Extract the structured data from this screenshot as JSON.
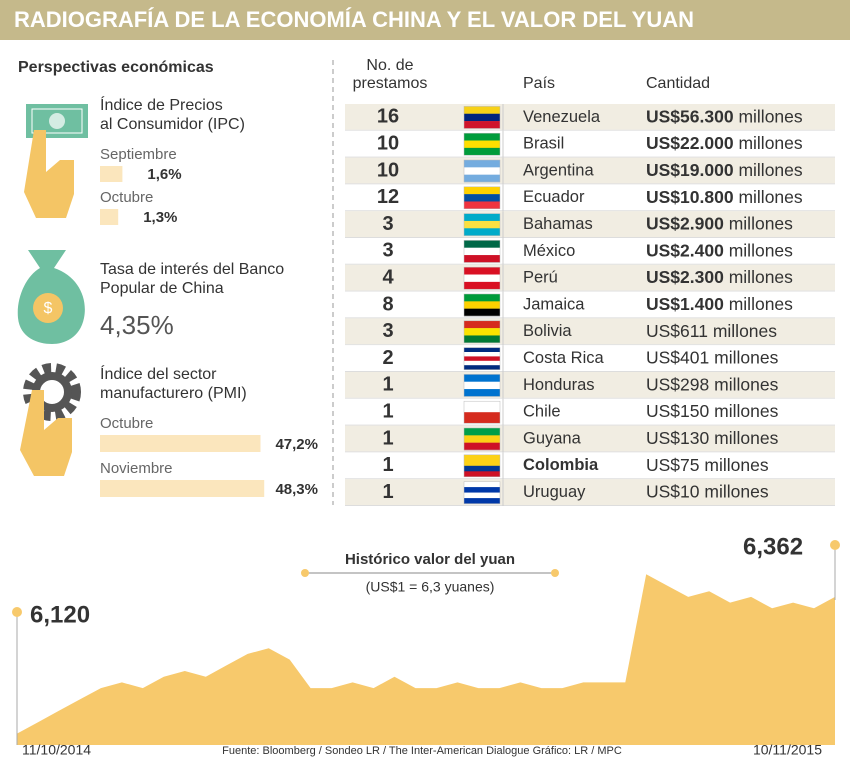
{
  "title": "RADIOGRAFÍA DE LA ECONOMÍA CHINA Y EL VALOR DEL YUAN",
  "perspectives": {
    "heading": "Perspectivas económicas",
    "ipc": {
      "title": [
        "Índice de Precios",
        "al Consumidor (IPC)"
      ],
      "items": [
        {
          "month": "Septiembre",
          "value": 1.6,
          "label": "1,6%"
        },
        {
          "month": "Octubre",
          "value": 1.3,
          "label": "1,3%"
        }
      ]
    },
    "rate": {
      "title": [
        "Tasa de interés del Banco",
        "Popular de China"
      ],
      "value": "4,35%"
    },
    "pmi": {
      "title": [
        "Índice del sector",
        "manufacturero (PMI)"
      ],
      "items": [
        {
          "month": "Octubre",
          "value": 47.2,
          "label": "47,2%"
        },
        {
          "month": "Noviembre",
          "value": 48.3,
          "label": "48,3%"
        }
      ]
    }
  },
  "table": {
    "headers": {
      "loans": [
        "No. de",
        "prestamos"
      ],
      "country": "País",
      "amount": "Cantidad"
    },
    "rows": [
      {
        "loans": "16",
        "country": "Venezuela",
        "amount": "US$56.300",
        "unit": "millones"
      },
      {
        "loans": "10",
        "country": "Brasil",
        "amount": "US$22.000",
        "unit": "millones"
      },
      {
        "loans": "10",
        "country": "Argentina",
        "amount": "US$19.000",
        "unit": "millones"
      },
      {
        "loans": "12",
        "country": "Ecuador",
        "amount": "US$10.800",
        "unit": "millones"
      },
      {
        "loans": "3",
        "country": "Bahamas",
        "amount": "US$2.900",
        "unit": "millones"
      },
      {
        "loans": "3",
        "country": "México",
        "amount": "US$2.400",
        "unit": "millones"
      },
      {
        "loans": "4",
        "country": "Perú",
        "amount": "US$2.300",
        "unit": "millones"
      },
      {
        "loans": "8",
        "country": "Jamaica",
        "amount": "US$1.400",
        "unit": "millones"
      },
      {
        "loans": "3",
        "country": "Bolivia",
        "amount": "US$611",
        "unit": "millones"
      },
      {
        "loans": "2",
        "country": "Costa Rica",
        "amount": "US$401",
        "unit": "millones"
      },
      {
        "loans": "1",
        "country": "Honduras",
        "amount": "US$298",
        "unit": "millones"
      },
      {
        "loans": "1",
        "country": "Chile",
        "amount": "US$150",
        "unit": "millones"
      },
      {
        "loans": "1",
        "country": "Guyana",
        "amount": "US$130",
        "unit": "millones"
      },
      {
        "loans": "1",
        "country": "Colombia",
        "amount": "US$75",
        "unit": "millones"
      },
      {
        "loans": "1",
        "country": "Uruguay",
        "amount": "US$10",
        "unit": "millones"
      }
    ]
  },
  "chart_data": {
    "type": "area",
    "title": "Histórico valor del yuan",
    "subtitle": "(US$1 = 6,3 yuanes)",
    "start_label": "6,120",
    "end_label": "6,362",
    "x_start_label": "11/10/2014",
    "x_end_label": "10/11/2015",
    "source": "Fuente: Bloomberg / Sondeo LR / The Inter-American Dialogue  Gráfico: LR / MPC",
    "color": "#f7c96c",
    "ylim": [
      6.1,
      6.46
    ],
    "values": [
      6.12,
      6.14,
      6.16,
      6.18,
      6.2,
      6.21,
      6.2,
      6.22,
      6.23,
      6.22,
      6.24,
      6.26,
      6.27,
      6.25,
      6.2,
      6.2,
      6.21,
      6.2,
      6.22,
      6.2,
      6.2,
      6.21,
      6.2,
      6.2,
      6.21,
      6.2,
      6.2,
      6.21,
      6.21,
      6.21,
      6.4,
      6.38,
      6.36,
      6.37,
      6.35,
      6.36,
      6.34,
      6.35,
      6.34,
      6.36
    ]
  }
}
